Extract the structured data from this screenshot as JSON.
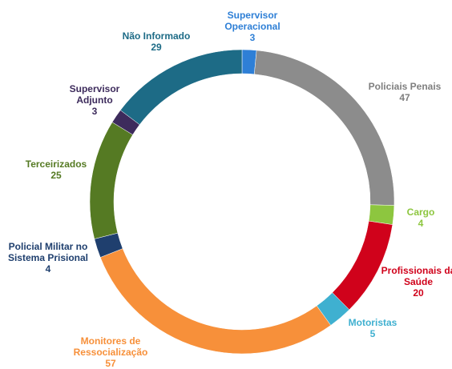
{
  "chart_data": {
    "type": "donut",
    "categories": [
      "Supervisor Operacional",
      "Policiais Penais",
      "Cargo",
      "Profissionais da Saúde",
      "Motoristas",
      "Monitores de Ressocialização",
      "Policial Militar no Sistema Prisional",
      "Terceirizados",
      "Supervisor Adjunto",
      "Não Informado"
    ],
    "values": [
      3,
      47,
      4,
      20,
      5,
      57,
      4,
      25,
      3,
      29
    ],
    "colors": [
      "#2e7fd6",
      "#8c8c8c",
      "#8dc63f",
      "#d0021b",
      "#3fb0d0",
      "#f7903a",
      "#1f3f6e",
      "#557a23",
      "#3d2b5c",
      "#1d6b86"
    ]
  }
}
